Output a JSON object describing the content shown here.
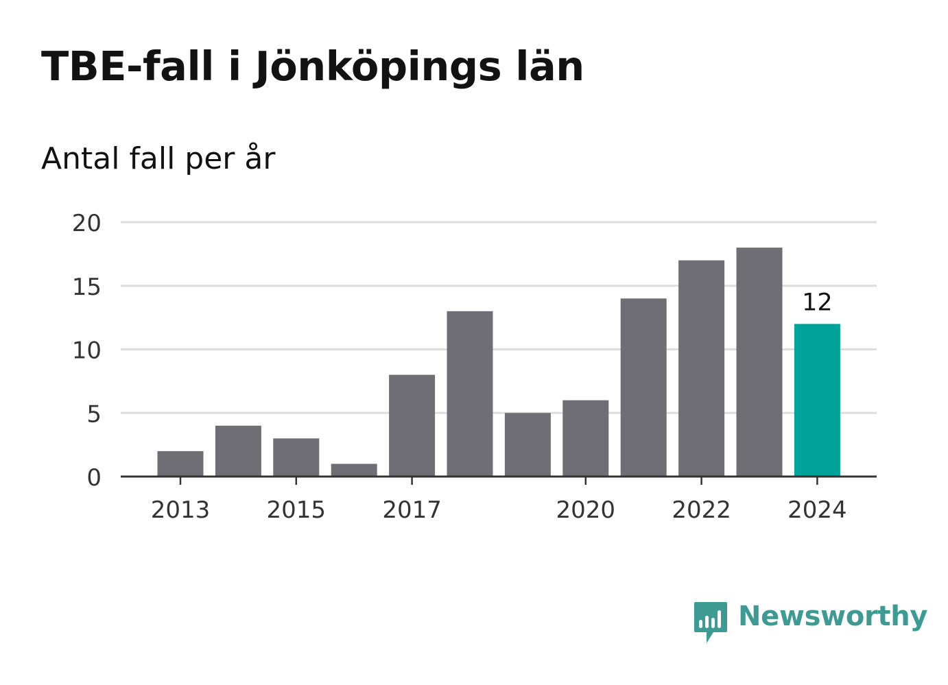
{
  "header": {
    "title": "TBE-fall i Jönköpings län",
    "subtitle": "Antal fall per år"
  },
  "brand": {
    "name": "Newsworthy",
    "icon": "newsworthy-logo-icon",
    "color": "#3d9b94"
  },
  "colors": {
    "bar": "#6f6e74",
    "highlight": "#00a399",
    "grid": "#dddddd",
    "axis": "#333333",
    "tick_text": "#333333"
  },
  "chart_data": {
    "type": "bar",
    "title": "TBE-fall i Jönköpings län",
    "subtitle": "Antal fall per år",
    "categories": [
      "2013",
      "2014",
      "2015",
      "2016",
      "2017",
      "2018",
      "2019",
      "2020",
      "2021",
      "2022",
      "2023",
      "2024"
    ],
    "values": [
      2,
      4,
      3,
      1,
      8,
      13,
      5,
      6,
      14,
      17,
      18,
      12
    ],
    "highlight_index": 11,
    "data_labels": [
      {
        "index": 11,
        "text": "12"
      }
    ],
    "xticks": [
      "2013",
      "2015",
      "2017",
      "2020",
      "2022",
      "2024"
    ],
    "yticks": [
      0,
      5,
      10,
      15,
      20
    ],
    "ylim": [
      0,
      20
    ],
    "grid": true,
    "legend": "none"
  }
}
